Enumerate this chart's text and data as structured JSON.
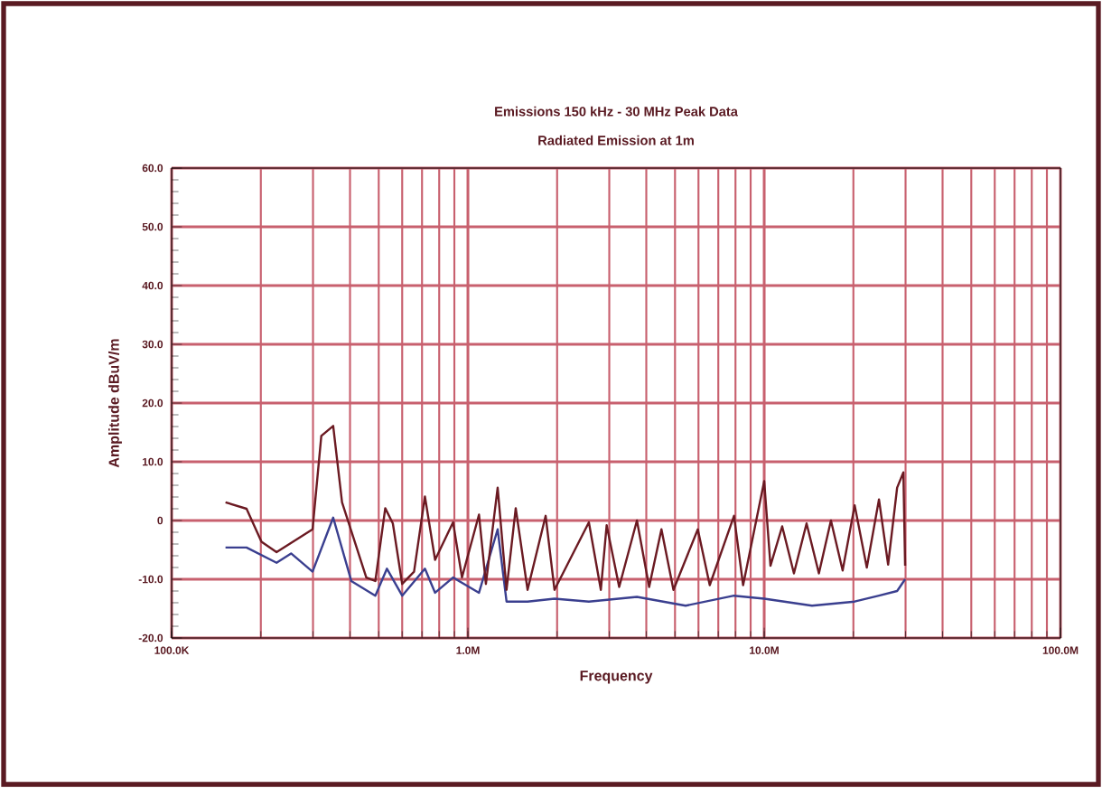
{
  "chart_data": {
    "type": "line",
    "title": "Emissions 150 kHz - 30 MHz   Peak Data",
    "subtitle": "Radiated Emission at 1m",
    "xlabel": "Frequency",
    "ylabel": "Amplitude dBuV/m",
    "log": "x",
    "grid": true,
    "xlim": [
      100000,
      100000000
    ],
    "xticks": [
      {
        "value": 100000,
        "label": "100.0K"
      },
      {
        "value": 1000000,
        "label": "1.0M"
      },
      {
        "value": 10000000,
        "label": "10.0M"
      },
      {
        "value": 100000000,
        "label": "100.0M"
      }
    ],
    "ylim": [
      -20,
      60
    ],
    "yticks": [
      {
        "value": -20,
        "label": "-20.0"
      },
      {
        "value": -10,
        "label": "-10.0"
      },
      0,
      {
        "value": 10,
        "label": "10.0"
      },
      {
        "value": 20,
        "label": "20.0"
      },
      {
        "value": 30,
        "label": "30.0"
      },
      {
        "value": 40,
        "label": "40.0"
      },
      {
        "value": 50,
        "label": "50.0"
      },
      {
        "value": 60,
        "label": "60.0"
      }
    ],
    "series": [
      {
        "color": "#3a3f8f",
        "x": [
          152000,
          179000,
          226000,
          253000,
          299000,
          351000,
          404000,
          487000,
          533000,
          600000,
          716000,
          775000,
          891000,
          1090000,
          1260000,
          1350000,
          1590000,
          1960000,
          2560000,
          3720000,
          5430000,
          7910000,
          10000000,
          14500000,
          20200000,
          24400000,
          28100000,
          29900000
        ],
        "values": [
          -4.6,
          -4.6,
          -7.2,
          -5.6,
          -8.7,
          0.5,
          -10.3,
          -12.8,
          -8.2,
          -12.8,
          -8.2,
          -12.3,
          -9.7,
          -12.3,
          -1.5,
          -13.8,
          -13.8,
          -13.3,
          -13.8,
          -13,
          -14.5,
          -12.8,
          -13.3,
          -14.5,
          -13.8,
          -12.8,
          -12,
          -10
        ]
      },
      {
        "color": "#6b1a22",
        "x": [
          152000,
          179000,
          201000,
          226000,
          299000,
          320000,
          351000,
          376000,
          454000,
          487000,
          526000,
          558000,
          600000,
          658000,
          716000,
          775000,
          891000,
          955000,
          1090000,
          1150000,
          1260000,
          1350000,
          1450000,
          1590000,
          1830000,
          1960000,
          2560000,
          2810000,
          2940000,
          3240000,
          3720000,
          4090000,
          4500000,
          4940000,
          5970000,
          6550000,
          7910000,
          8490000,
          10000000,
          10500000,
          11500000,
          12600000,
          13900000,
          15300000,
          16800000,
          18400000,
          20200000,
          22200000,
          24400000,
          26200000,
          28100000,
          29500000,
          29900000
        ],
        "values": [
          3.1,
          2.0,
          -3.6,
          -5.4,
          -1.5,
          14.4,
          16.1,
          3.1,
          -9.7,
          -10.3,
          2.1,
          -0.5,
          -10.8,
          -8.7,
          4.1,
          -6.7,
          -0.3,
          -9.7,
          1.0,
          -10.8,
          5.6,
          -11.8,
          2.1,
          -11.8,
          0.8,
          -11.8,
          -0.3,
          -11.8,
          -0.8,
          -11.3,
          0,
          -11.3,
          -1.5,
          -11.8,
          -1.5,
          -11,
          0.8,
          -11,
          6.7,
          -7.7,
          -1,
          -9,
          -0.5,
          -9,
          0,
          -8.5,
          2.6,
          -8,
          3.6,
          -7.5,
          5.6,
          8.2,
          -7.7
        ]
      }
    ]
  }
}
